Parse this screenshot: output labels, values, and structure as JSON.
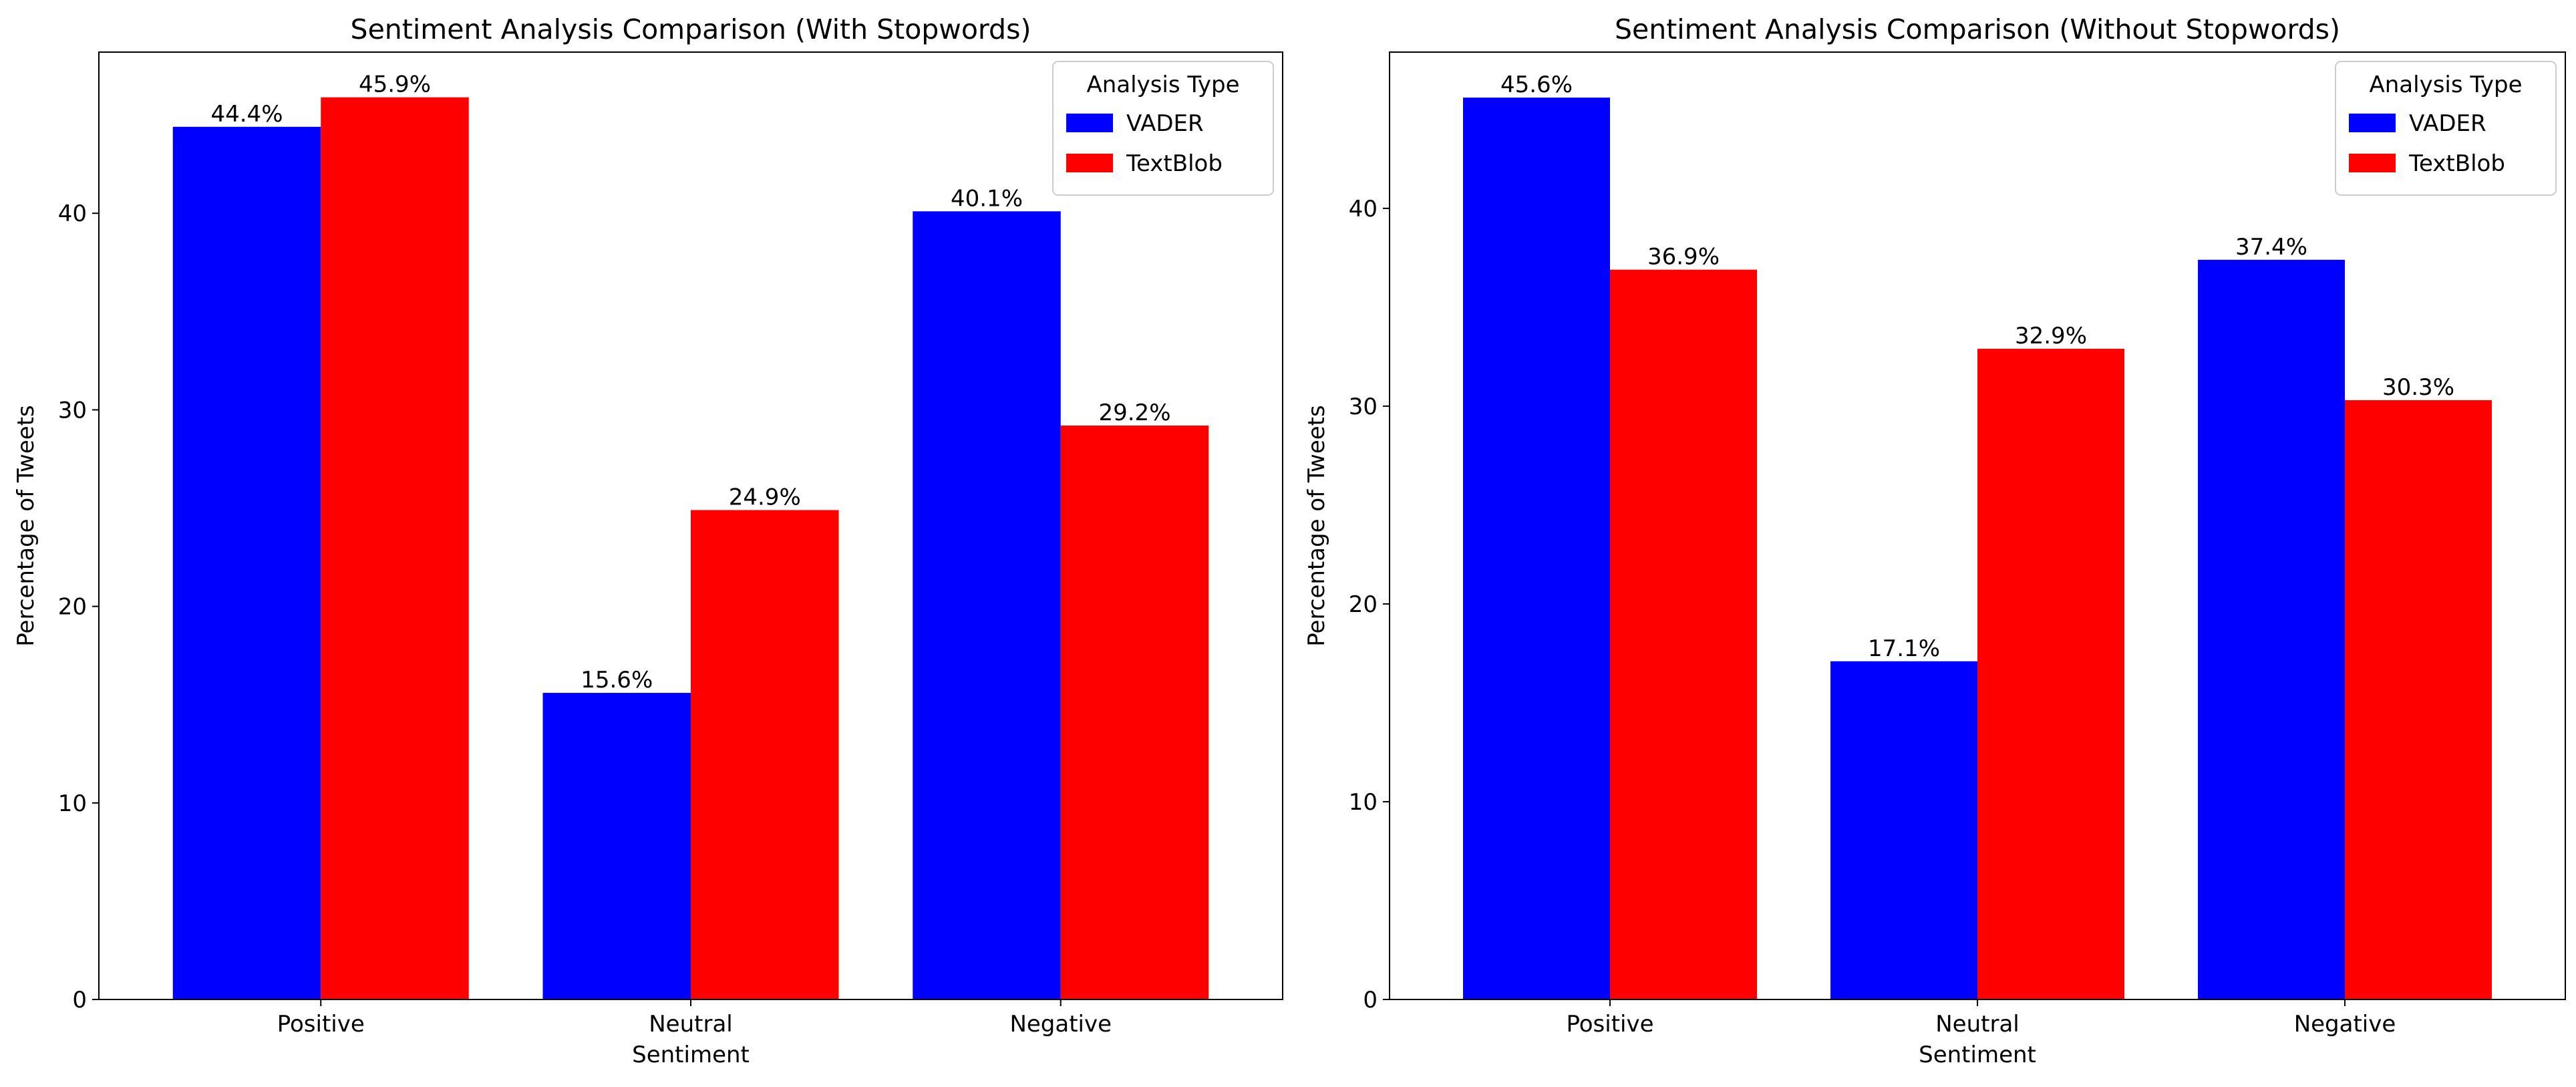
{
  "chart_data": [
    {
      "type": "bar",
      "title": "Sentiment Analysis Comparison (With Stopwords)",
      "xlabel": "Sentiment",
      "ylabel": "Percentage of Tweets",
      "categories": [
        "Positive",
        "Neutral",
        "Negative"
      ],
      "series": [
        {
          "name": "VADER",
          "color": "#0000ff",
          "values": [
            44.4,
            15.6,
            40.1
          ],
          "labels": [
            "44.4%",
            "15.6%",
            "40.1%"
          ]
        },
        {
          "name": "TextBlob",
          "color": "#ff0000",
          "values": [
            45.9,
            24.9,
            29.2
          ],
          "labels": [
            "45.9%",
            "24.9%",
            "29.2%"
          ]
        }
      ],
      "yticks": [
        0,
        10,
        20,
        30,
        40
      ],
      "ytick_labels": [
        "0",
        "10",
        "20",
        "30",
        "40"
      ],
      "ylim": [
        0,
        48.2
      ],
      "legend": {
        "title": "Analysis Type",
        "position": "upper right"
      },
      "grid": false
    },
    {
      "type": "bar",
      "title": "Sentiment Analysis Comparison (Without Stopwords)",
      "xlabel": "Sentiment",
      "ylabel": "Percentage of Tweets",
      "categories": [
        "Positive",
        "Neutral",
        "Negative"
      ],
      "series": [
        {
          "name": "VADER",
          "color": "#0000ff",
          "values": [
            45.6,
            17.1,
            37.4
          ],
          "labels": [
            "45.6%",
            "17.1%",
            "37.4%"
          ]
        },
        {
          "name": "TextBlob",
          "color": "#ff0000",
          "values": [
            36.9,
            32.9,
            30.3
          ],
          "labels": [
            "36.9%",
            "32.9%",
            "30.3%"
          ]
        }
      ],
      "yticks": [
        0,
        10,
        20,
        30,
        40
      ],
      "ytick_labels": [
        "0",
        "10",
        "20",
        "30",
        "40"
      ],
      "ylim": [
        0,
        47.9
      ],
      "legend": {
        "title": "Analysis Type",
        "position": "upper right"
      },
      "grid": false
    }
  ]
}
